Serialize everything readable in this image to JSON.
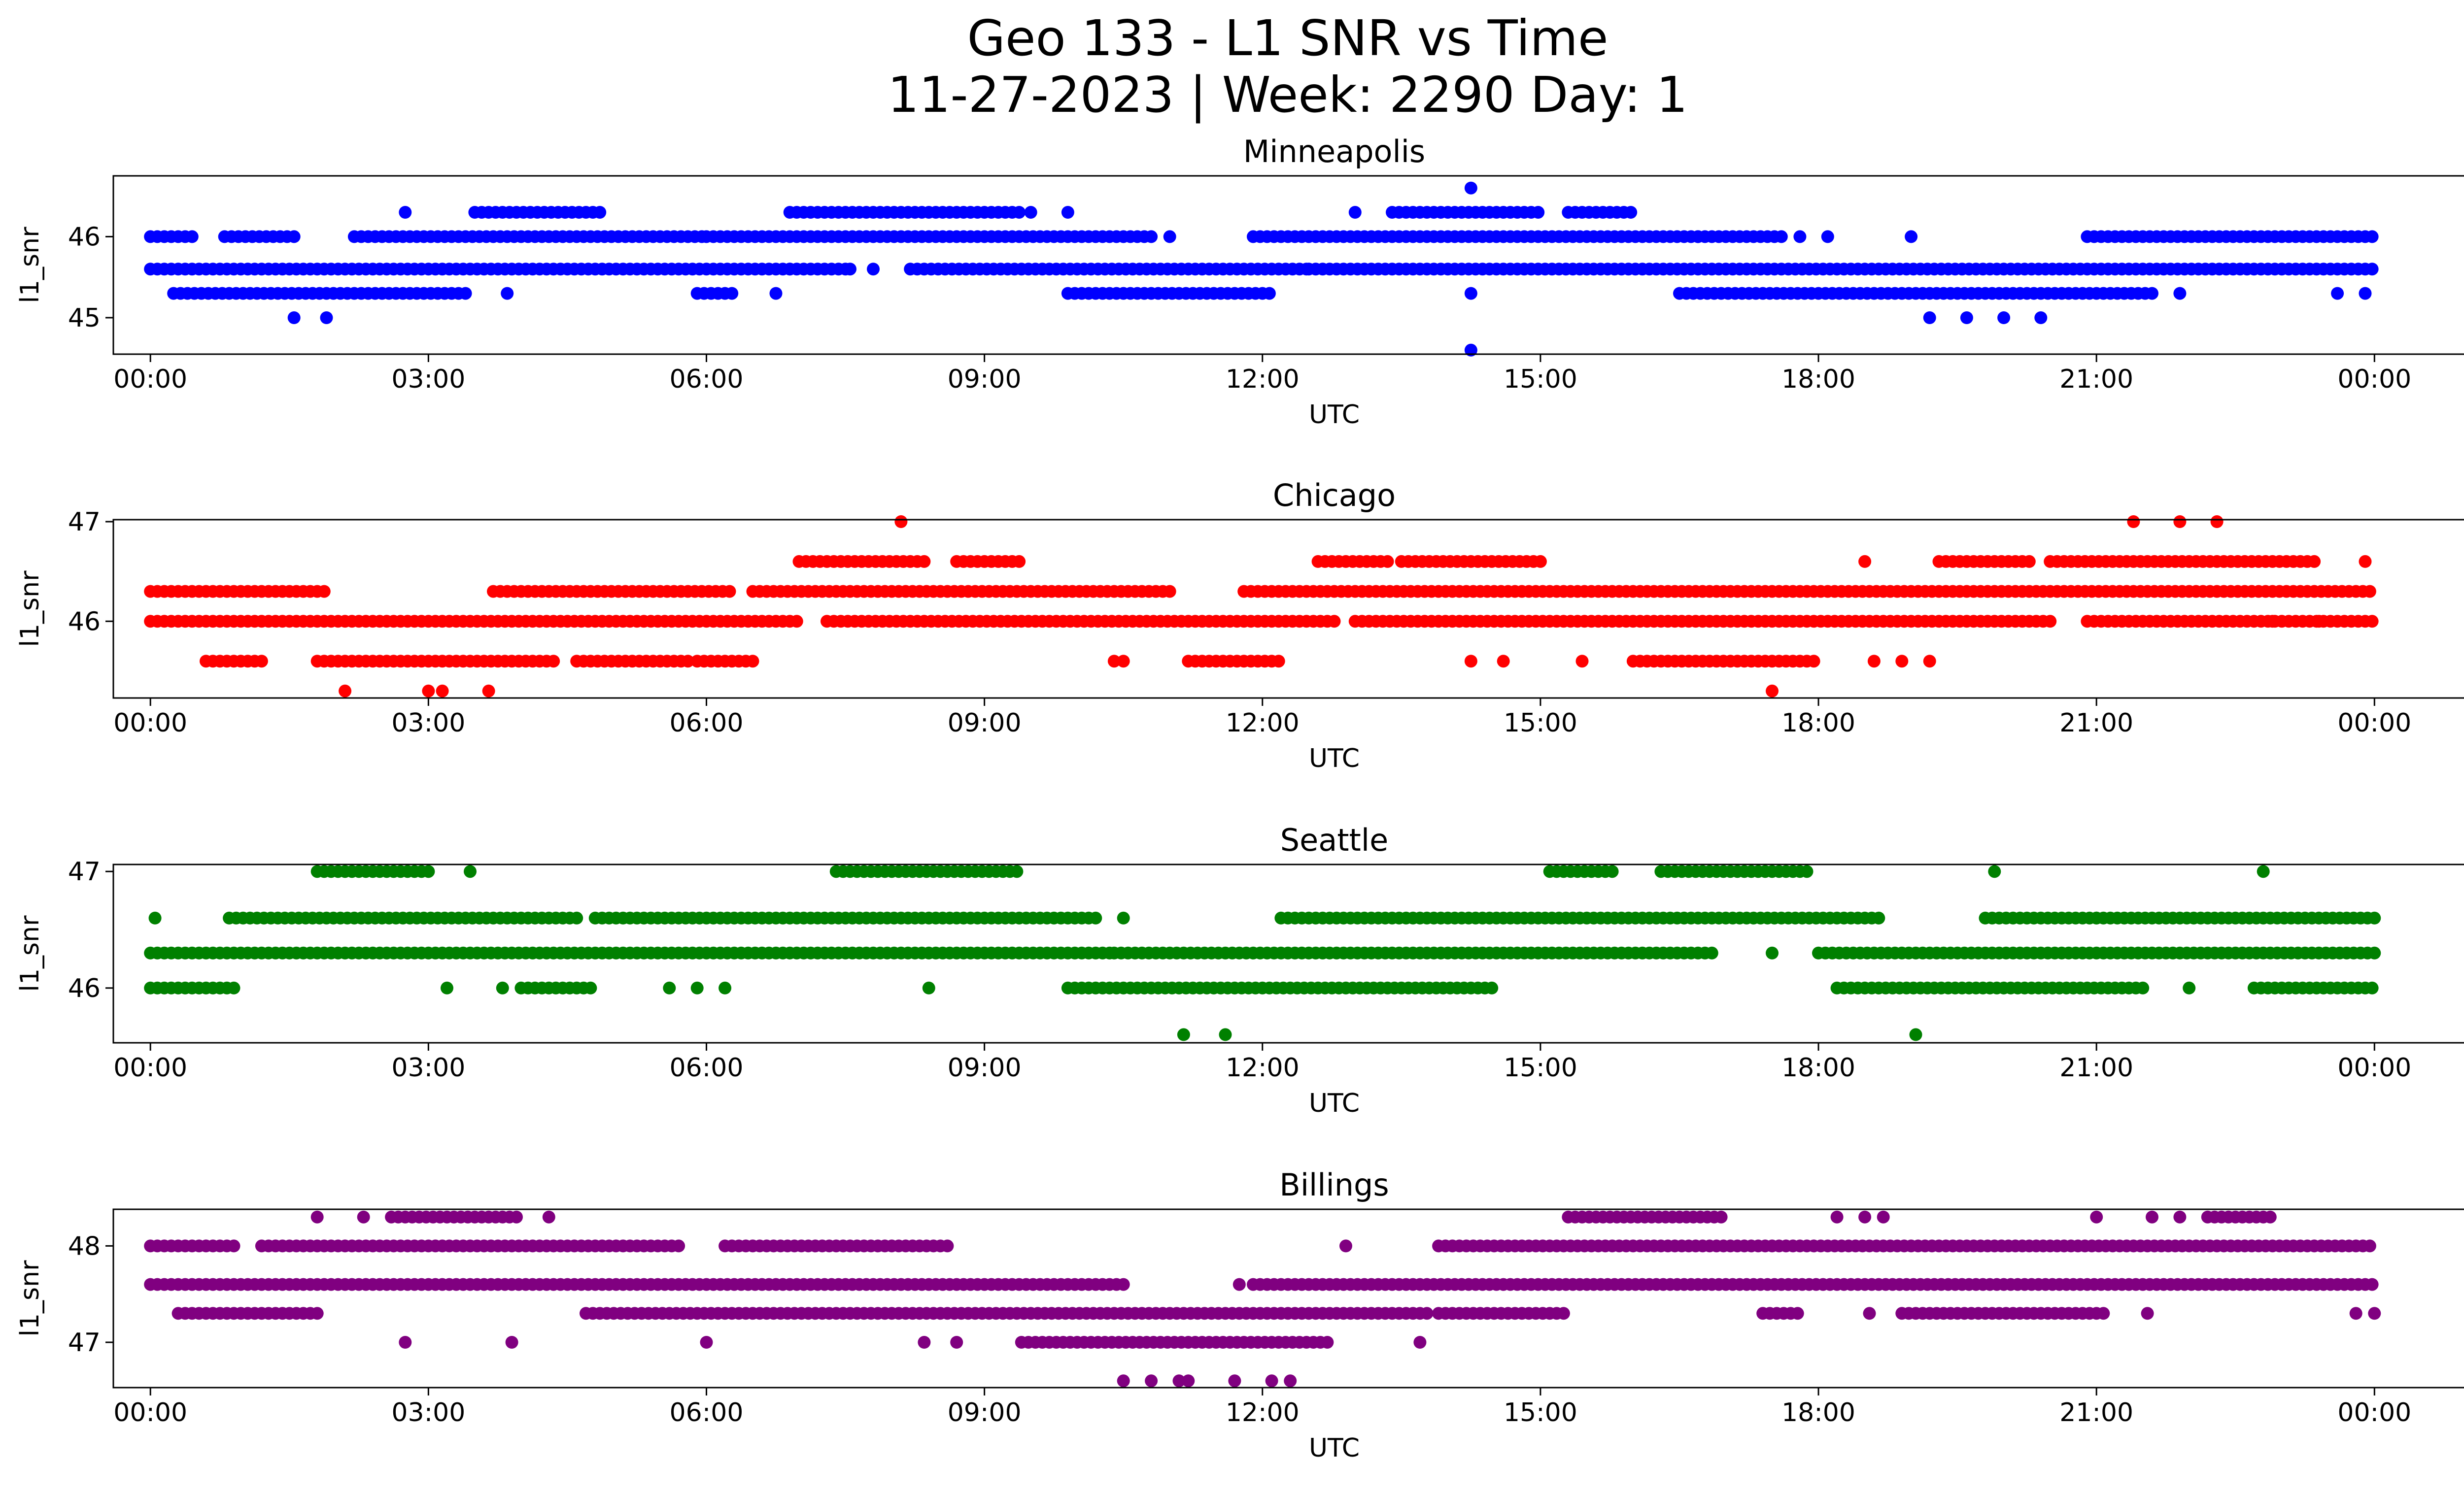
{
  "title_line1": "Geo 133 - L1 SNR vs Time",
  "title_line2": "11-27-2023 | Week: 2290 Day: 1",
  "chart_data": [
    {
      "type": "scatter",
      "title": "Minneapolis",
      "xlabel": "UTC",
      "ylabel": "l1_snr",
      "color": "#0000ff",
      "xlim_hours": [
        -0.4,
        25.95
      ],
      "ylim": [
        44.55,
        46.75
      ],
      "xticks": [
        "00:00",
        "03:00",
        "06:00",
        "09:00",
        "12:00",
        "15:00",
        "18:00",
        "21:00",
        "00:00"
      ],
      "yticks": [
        45,
        46
      ],
      "bands": [
        {
          "y": 45.6,
          "ranges": [
            [
              0.0,
              6.9
            ],
            [
              6.9,
              7.5
            ],
            [
              8.2,
              12.5
            ],
            [
              12.5,
              24.0
            ]
          ]
        },
        {
          "y": 46.0,
          "ranges": [
            [
              0.0,
              0.45
            ],
            [
              0.8,
              1.6
            ],
            [
              2.2,
              6.0
            ],
            [
              6.0,
              10.8
            ],
            [
              11.9,
              16.7
            ],
            [
              16.7,
              17.6
            ],
            [
              20.9,
              24.0
            ]
          ]
        },
        {
          "y": 45.3,
          "ranges": [
            [
              0.25,
              3.4
            ],
            [
              5.9,
              6.3
            ],
            [
              9.9,
              12.1
            ],
            [
              16.5,
              21.6
            ]
          ]
        },
        {
          "y": 46.3,
          "ranges": [
            [
              3.5,
              4.9
            ],
            [
              6.9,
              9.4
            ],
            [
              13.4,
              15.0
            ],
            [
              15.3,
              16.0
            ]
          ]
        }
      ],
      "extra_points": [
        {
          "x": 1.55,
          "y": 45.0
        },
        {
          "x": 1.9,
          "y": 45.0
        },
        {
          "x": 2.75,
          "y": 46.3
        },
        {
          "x": 3.85,
          "y": 45.3
        },
        {
          "x": 6.75,
          "y": 45.3
        },
        {
          "x": 7.55,
          "y": 45.6
        },
        {
          "x": 7.8,
          "y": 45.6
        },
        {
          "x": 9.5,
          "y": 46.3
        },
        {
          "x": 9.9,
          "y": 46.3
        },
        {
          "x": 11.0,
          "y": 46.0
        },
        {
          "x": 13.0,
          "y": 46.3
        },
        {
          "x": 14.25,
          "y": 46.6
        },
        {
          "x": 14.25,
          "y": 45.3
        },
        {
          "x": 14.25,
          "y": 44.6
        },
        {
          "x": 17.8,
          "y": 46.0
        },
        {
          "x": 18.1,
          "y": 46.0
        },
        {
          "x": 19.0,
          "y": 46.0
        },
        {
          "x": 19.2,
          "y": 45.0
        },
        {
          "x": 19.6,
          "y": 45.0
        },
        {
          "x": 20.0,
          "y": 45.0
        },
        {
          "x": 20.4,
          "y": 45.0
        },
        {
          "x": 21.9,
          "y": 45.3
        },
        {
          "x": 23.6,
          "y": 45.3
        },
        {
          "x": 23.9,
          "y": 45.3
        }
      ]
    },
    {
      "type": "scatter",
      "title": "Chicago",
      "xlabel": "UTC",
      "ylabel": "l1_snr",
      "color": "#ff0000",
      "xlim_hours": [
        -0.4,
        25.95
      ],
      "ylim": [
        45.23,
        47.02
      ],
      "xticks": [
        "00:00",
        "03:00",
        "06:00",
        "09:00",
        "12:00",
        "15:00",
        "18:00",
        "21:00",
        "00:00"
      ],
      "yticks": [
        46,
        47
      ],
      "bands": [
        {
          "y": 46.0,
          "ranges": [
            [
              0.0,
              7.0
            ],
            [
              7.3,
              12.8
            ],
            [
              13.0,
              20.5
            ],
            [
              20.9,
              24.0
            ]
          ]
        },
        {
          "y": 46.3,
          "ranges": [
            [
              0.0,
              1.9
            ],
            [
              3.7,
              6.3
            ],
            [
              6.5,
              11.0
            ],
            [
              11.8,
              24.0
            ]
          ]
        },
        {
          "y": 45.6,
          "ranges": [
            [
              0.6,
              1.2
            ],
            [
              1.8,
              4.4
            ],
            [
              4.6,
              5.8
            ],
            [
              5.9,
              6.5
            ],
            [
              11.2,
              12.2
            ],
            [
              16.0,
              18.0
            ]
          ]
        },
        {
          "y": 46.6,
          "ranges": [
            [
              7.0,
              8.4
            ],
            [
              8.7,
              9.4
            ],
            [
              12.6,
              13.4
            ],
            [
              13.5,
              15.0
            ],
            [
              19.3,
              20.3
            ],
            [
              20.5,
              23.4
            ]
          ]
        }
      ],
      "extra_points": [
        {
          "x": 2.1,
          "y": 45.3
        },
        {
          "x": 3.0,
          "y": 45.3
        },
        {
          "x": 3.15,
          "y": 45.3
        },
        {
          "x": 3.65,
          "y": 45.3
        },
        {
          "x": 8.1,
          "y": 47.0
        },
        {
          "x": 10.4,
          "y": 45.6
        },
        {
          "x": 10.5,
          "y": 45.6
        },
        {
          "x": 14.25,
          "y": 45.6
        },
        {
          "x": 14.6,
          "y": 45.6
        },
        {
          "x": 15.45,
          "y": 45.6
        },
        {
          "x": 17.5,
          "y": 45.3
        },
        {
          "x": 18.5,
          "y": 46.6
        },
        {
          "x": 18.6,
          "y": 45.6
        },
        {
          "x": 18.9,
          "y": 45.6
        },
        {
          "x": 19.2,
          "y": 45.6
        },
        {
          "x": 21.4,
          "y": 47.0
        },
        {
          "x": 21.9,
          "y": 47.0
        },
        {
          "x": 22.3,
          "y": 47.0
        },
        {
          "x": 22.9,
          "y": 46.0
        },
        {
          "x": 23.4,
          "y": 46.0
        },
        {
          "x": 23.9,
          "y": 46.6
        }
      ]
    },
    {
      "type": "scatter",
      "title": "Seattle",
      "xlabel": "UTC",
      "ylabel": "l1_snr",
      "color": "#008000",
      "xlim_hours": [
        -0.4,
        25.95
      ],
      "ylim": [
        45.53,
        47.06
      ],
      "xticks": [
        "00:00",
        "03:00",
        "06:00",
        "09:00",
        "12:00",
        "15:00",
        "18:00",
        "21:00",
        "00:00"
      ],
      "yticks": [
        46,
        47
      ],
      "bands": [
        {
          "y": 46.3,
          "ranges": [
            [
              0.0,
              10.4
            ],
            [
              10.4,
              16.9
            ],
            [
              18.0,
              24.0
            ]
          ]
        },
        {
          "y": 46.6,
          "ranges": [
            [
              0.85,
              4.6
            ],
            [
              4.8,
              10.2
            ],
            [
              12.2,
              18.7
            ],
            [
              19.8,
              24.0
            ]
          ]
        },
        {
          "y": 46.0,
          "ranges": [
            [
              0.0,
              0.9
            ],
            [
              4.0,
              4.8
            ],
            [
              9.9,
              14.5
            ],
            [
              18.2,
              21.5
            ],
            [
              22.7,
              24.0
            ]
          ]
        },
        {
          "y": 47.0,
          "ranges": [
            [
              1.8,
              3.0
            ],
            [
              7.4,
              9.4
            ],
            [
              15.1,
              15.8
            ],
            [
              16.3,
              17.9
            ]
          ]
        }
      ],
      "extra_points": [
        {
          "x": 0.05,
          "y": 46.6
        },
        {
          "x": 3.2,
          "y": 46.0
        },
        {
          "x": 3.8,
          "y": 46.0
        },
        {
          "x": 3.45,
          "y": 47.0
        },
        {
          "x": 5.6,
          "y": 46.0
        },
        {
          "x": 5.9,
          "y": 46.0
        },
        {
          "x": 6.2,
          "y": 46.0
        },
        {
          "x": 8.4,
          "y": 46.0
        },
        {
          "x": 10.5,
          "y": 46.6
        },
        {
          "x": 11.15,
          "y": 45.6
        },
        {
          "x": 11.6,
          "y": 45.6
        },
        {
          "x": 17.5,
          "y": 46.3
        },
        {
          "x": 19.05,
          "y": 45.6
        },
        {
          "x": 19.9,
          "y": 47.0
        },
        {
          "x": 21.0,
          "y": 46.6
        },
        {
          "x": 22.0,
          "y": 46.0
        },
        {
          "x": 22.8,
          "y": 47.0
        }
      ]
    },
    {
      "type": "scatter",
      "title": "Billings",
      "xlabel": "UTC",
      "ylabel": "l1_snr",
      "color": "#800080",
      "xlim_hours": [
        -0.4,
        25.95
      ],
      "ylim": [
        46.53,
        48.38
      ],
      "xticks": [
        "00:00",
        "03:00",
        "06:00",
        "09:00",
        "12:00",
        "15:00",
        "18:00",
        "21:00",
        "00:00"
      ],
      "yticks": [
        47,
        48
      ],
      "bands": [
        {
          "y": 47.6,
          "ranges": [
            [
              0.0,
              10.5
            ],
            [
              11.9,
              24.0
            ]
          ]
        },
        {
          "y": 48.0,
          "ranges": [
            [
              0.0,
              0.9
            ],
            [
              1.2,
              5.7
            ],
            [
              6.2,
              8.6
            ],
            [
              13.9,
              24.0
            ]
          ]
        },
        {
          "y": 47.3,
          "ranges": [
            [
              0.3,
              1.8
            ],
            [
              4.7,
              13.8
            ],
            [
              13.9,
              15.3
            ],
            [
              17.4,
              17.8
            ],
            [
              18.9,
              21.1
            ]
          ]
        },
        {
          "y": 47.0,
          "ranges": [
            [
              9.4,
              12.7
            ]
          ]
        },
        {
          "y": 48.3,
          "ranges": [
            [
              2.6,
              4.0
            ],
            [
              15.3,
              17.0
            ],
            [
              22.2,
              22.9
            ]
          ]
        }
      ],
      "extra_points": [
        {
          "x": 1.8,
          "y": 48.3
        },
        {
          "x": 2.3,
          "y": 48.3
        },
        {
          "x": 4.3,
          "y": 48.3
        },
        {
          "x": 2.75,
          "y": 47.0
        },
        {
          "x": 3.9,
          "y": 47.0
        },
        {
          "x": 6.0,
          "y": 47.0
        },
        {
          "x": 8.35,
          "y": 47.0
        },
        {
          "x": 8.7,
          "y": 47.0
        },
        {
          "x": 13.7,
          "y": 47.0
        },
        {
          "x": 10.5,
          "y": 46.6
        },
        {
          "x": 10.8,
          "y": 46.6
        },
        {
          "x": 11.1,
          "y": 46.6
        },
        {
          "x": 11.2,
          "y": 46.6
        },
        {
          "x": 11.7,
          "y": 46.6
        },
        {
          "x": 12.1,
          "y": 46.6
        },
        {
          "x": 12.3,
          "y": 46.6
        },
        {
          "x": 12.9,
          "y": 48.0
        },
        {
          "x": 11.75,
          "y": 47.6
        },
        {
          "x": 18.2,
          "y": 48.3
        },
        {
          "x": 18.5,
          "y": 48.3
        },
        {
          "x": 18.7,
          "y": 48.3
        },
        {
          "x": 21.0,
          "y": 48.3
        },
        {
          "x": 21.6,
          "y": 48.3
        },
        {
          "x": 21.9,
          "y": 48.3
        },
        {
          "x": 18.55,
          "y": 47.3
        },
        {
          "x": 21.55,
          "y": 47.3
        },
        {
          "x": 23.8,
          "y": 47.3
        },
        {
          "x": 24.0,
          "y": 47.3
        }
      ]
    }
  ]
}
